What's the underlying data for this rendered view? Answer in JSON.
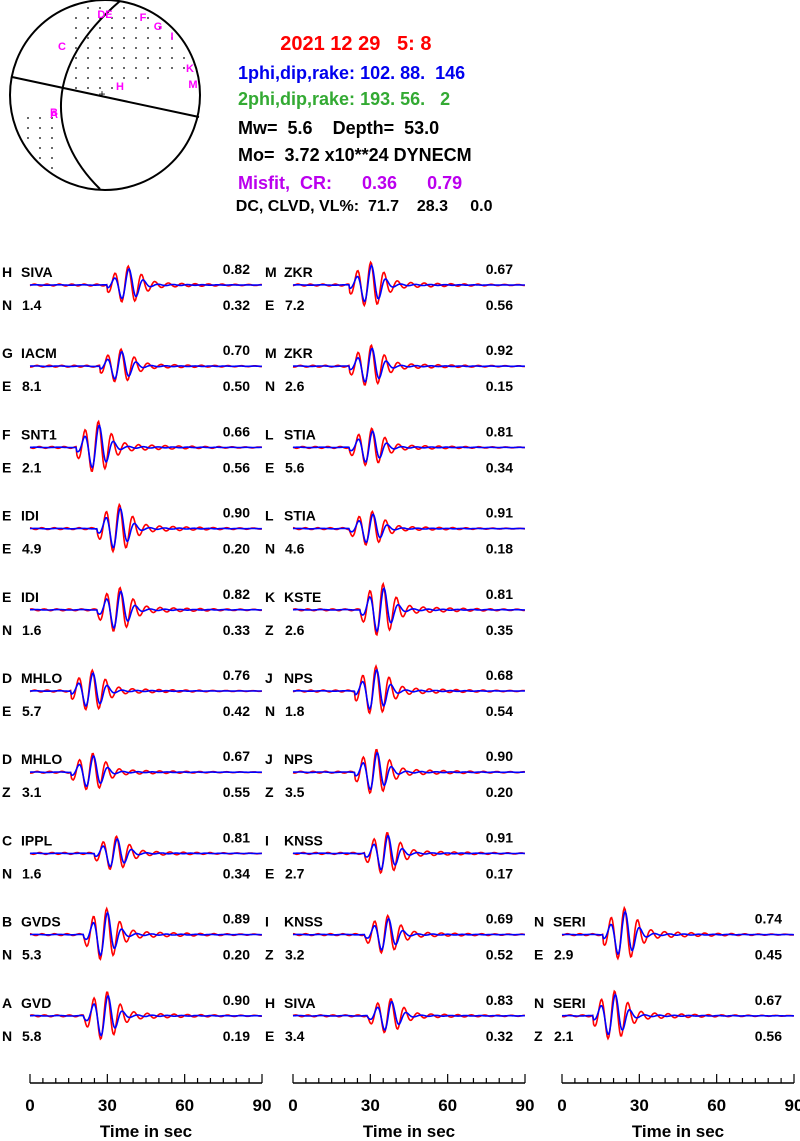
{
  "header": {
    "date": "2021 12 29",
    "time": "5: 8",
    "np1_label": "1phi,dip,rake:",
    "np1_values": "102. 88.  146",
    "np2_label": "2phi,dip,rake:",
    "np2_values": "193. 56.   2",
    "mw_label": "Mw=",
    "mw": "5.6",
    "depth_label": "Depth=",
    "depth": "53.0",
    "mo_label": "Mo=",
    "mo": "3.72 x10**24 DYNECM",
    "misfit_label": "Misfit,  CR:",
    "misfit": "0.36",
    "cr": "0.79",
    "vl_label": "DC, CLVD, VL%:",
    "dc": "71.7",
    "clvd": "28.3",
    "vl": "0.0"
  },
  "colors": {
    "date": "#ff0000",
    "np1": "#0000ee",
    "np2": "#33aa33",
    "misfit": "#bb00ee",
    "observed": "#ff0000",
    "synthetic": "#0000ff",
    "station_marker": "#ff00ff"
  },
  "beachball": {
    "station_markers": [
      "DE",
      "F",
      "G",
      "I",
      "C",
      "K",
      "M",
      "H",
      "B",
      "A"
    ]
  },
  "chart_data": {
    "type": "line",
    "description_units": "waveform panels; time axis 0-90 s",
    "xlabel": "Time  in sec",
    "xlim": [
      0,
      90
    ],
    "xticks": [
      0,
      30,
      60,
      90
    ],
    "panels": [
      {
        "col": 0,
        "row": 0,
        "code": "H",
        "station": "SIVA",
        "comp": "N",
        "amp": "1.4",
        "cc": "0.82",
        "vr": "0.32",
        "t0": 38
      },
      {
        "col": 0,
        "row": 1,
        "code": "G",
        "station": "IACM",
        "comp": "E",
        "amp": "8.1",
        "cc": "0.70",
        "vr": "0.50",
        "t0": 35
      },
      {
        "col": 0,
        "row": 2,
        "code": "F",
        "station": "SNT1",
        "comp": "E",
        "amp": "2.1",
        "cc": "0.66",
        "vr": "0.56",
        "t0": 26
      },
      {
        "col": 0,
        "row": 3,
        "code": "E",
        "station": "IDI",
        "comp": "E",
        "amp": "4.9",
        "cc": "0.90",
        "vr": "0.20",
        "t0": 34
      },
      {
        "col": 0,
        "row": 4,
        "code": "E",
        "station": "IDI",
        "comp": "N",
        "amp": "1.6",
        "cc": "0.82",
        "vr": "0.33",
        "t0": 34
      },
      {
        "col": 0,
        "row": 5,
        "code": "D",
        "station": "MHLO",
        "comp": "E",
        "amp": "5.7",
        "cc": "0.76",
        "vr": "0.42",
        "t0": 24
      },
      {
        "col": 0,
        "row": 6,
        "code": "D",
        "station": "MHLO",
        "comp": "Z",
        "amp": "3.1",
        "cc": "0.67",
        "vr": "0.55",
        "t0": 24
      },
      {
        "col": 0,
        "row": 7,
        "code": "C",
        "station": "IPPL",
        "comp": "N",
        "amp": "1.6",
        "cc": "0.81",
        "vr": "0.34",
        "t0": 33
      },
      {
        "col": 0,
        "row": 8,
        "code": "B",
        "station": "GVDS",
        "comp": "N",
        "amp": "5.3",
        "cc": "0.89",
        "vr": "0.20",
        "t0": 29
      },
      {
        "col": 0,
        "row": 9,
        "code": "A",
        "station": "GVD",
        "comp": "N",
        "amp": "5.8",
        "cc": "0.90",
        "vr": "0.19",
        "t0": 29
      },
      {
        "col": 1,
        "row": 0,
        "code": "M",
        "station": "ZKR",
        "comp": "E",
        "amp": "7.2",
        "cc": "0.67",
        "vr": "0.56",
        "t0": 30
      },
      {
        "col": 1,
        "row": 1,
        "code": "M",
        "station": "ZKR",
        "comp": "N",
        "amp": "2.6",
        "cc": "0.92",
        "vr": "0.15",
        "t0": 30
      },
      {
        "col": 1,
        "row": 2,
        "code": "L",
        "station": "STIA",
        "comp": "E",
        "amp": "5.6",
        "cc": "0.81",
        "vr": "0.34",
        "t0": 30
      },
      {
        "col": 1,
        "row": 3,
        "code": "L",
        "station": "STIA",
        "comp": "N",
        "amp": "4.6",
        "cc": "0.91",
        "vr": "0.18",
        "t0": 30
      },
      {
        "col": 1,
        "row": 4,
        "code": "K",
        "station": "KSTE",
        "comp": "Z",
        "amp": "2.6",
        "cc": "0.81",
        "vr": "0.35",
        "t0": 34
      },
      {
        "col": 1,
        "row": 5,
        "code": "J",
        "station": "NPS",
        "comp": "N",
        "amp": "1.8",
        "cc": "0.68",
        "vr": "0.54",
        "t0": 32
      },
      {
        "col": 1,
        "row": 6,
        "code": "J",
        "station": "NPS",
        "comp": "Z",
        "amp": "3.5",
        "cc": "0.90",
        "vr": "0.20",
        "t0": 32
      },
      {
        "col": 1,
        "row": 7,
        "code": "I",
        "station": "KNSS",
        "comp": "E",
        "amp": "2.7",
        "cc": "0.91",
        "vr": "0.17",
        "t0": 36
      },
      {
        "col": 1,
        "row": 8,
        "code": "I",
        "station": "KNSS",
        "comp": "Z",
        "amp": "3.2",
        "cc": "0.69",
        "vr": "0.52",
        "t0": 36
      },
      {
        "col": 1,
        "row": 9,
        "code": "H",
        "station": "SIVA",
        "comp": "E",
        "amp": "3.4",
        "cc": "0.83",
        "vr": "0.32",
        "t0": 37
      },
      {
        "col": 2,
        "row": 8,
        "code": "N",
        "station": "SERI",
        "comp": "E",
        "amp": "2.9",
        "cc": "0.74",
        "vr": "0.45",
        "t0": 24
      },
      {
        "col": 2,
        "row": 9,
        "code": "N",
        "station": "SERI",
        "comp": "Z",
        "amp": "2.1",
        "cc": "0.67",
        "vr": "0.56",
        "t0": 20
      }
    ]
  }
}
